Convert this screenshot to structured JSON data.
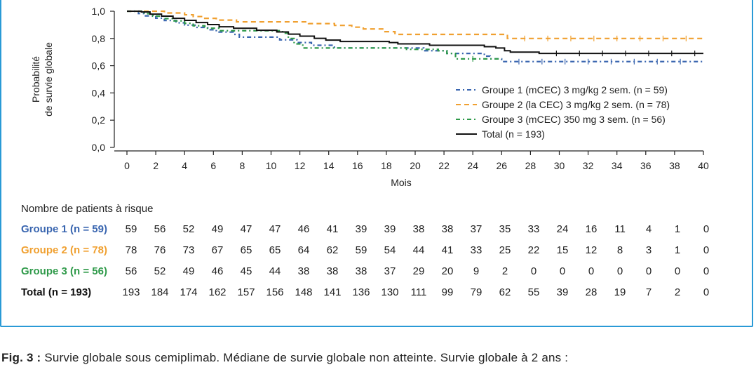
{
  "chart_data": {
    "type": "line",
    "subtype": "kaplan-meier",
    "ylabel_lines": [
      "Probabilité",
      "de survie globale"
    ],
    "xlabel": "Mois",
    "xlim": [
      0,
      40
    ],
    "ylim": [
      0,
      1
    ],
    "x_ticks": [
      "0",
      "2",
      "4",
      "6",
      "8",
      "10",
      "12",
      "14",
      "16",
      "18",
      "20",
      "22",
      "24",
      "26",
      "28",
      "30",
      "32",
      "34",
      "36",
      "38",
      "40"
    ],
    "y_ticks": [
      "0,0",
      "0,2",
      "0,4",
      "0,6",
      "0,8",
      "1,0"
    ],
    "legend_position": "lower-right",
    "series": [
      {
        "name": "Groupe 1 (mCEC) 3 mg/kg 2 sem. (n = 59)",
        "color": "#3a66b0",
        "dash": "dashdot",
        "points": [
          [
            0,
            1.0
          ],
          [
            0.8,
            0.983
          ],
          [
            1.2,
            0.966
          ],
          [
            2.0,
            0.949
          ],
          [
            2.6,
            0.932
          ],
          [
            3.4,
            0.915
          ],
          [
            4.0,
            0.898
          ],
          [
            4.8,
            0.881
          ],
          [
            5.6,
            0.864
          ],
          [
            6.2,
            0.847
          ],
          [
            7.0,
            0.847
          ],
          [
            7.4,
            0.83
          ],
          [
            7.8,
            0.81
          ],
          [
            9.2,
            0.81
          ],
          [
            9.8,
            0.81
          ],
          [
            10.6,
            0.79
          ],
          [
            11.2,
            0.79
          ],
          [
            11.8,
            0.77
          ],
          [
            12.8,
            0.75
          ],
          [
            13.6,
            0.75
          ],
          [
            14.4,
            0.73
          ],
          [
            19.6,
            0.73
          ],
          [
            20.6,
            0.71
          ],
          [
            22.2,
            0.69
          ],
          [
            24.8,
            0.67
          ],
          [
            25.2,
            0.65
          ],
          [
            26.0,
            0.63
          ],
          [
            40,
            0.63
          ]
        ]
      },
      {
        "name": "Groupe 2 (la CEC) 3 mg/kg 2 sem. (n = 78)",
        "color": "#f0a030",
        "dash": "dash",
        "points": [
          [
            0,
            1.0
          ],
          [
            2.6,
            0.987
          ],
          [
            4.0,
            0.974
          ],
          [
            4.6,
            0.961
          ],
          [
            5.4,
            0.948
          ],
          [
            6.2,
            0.935
          ],
          [
            7.6,
            0.922
          ],
          [
            11.8,
            0.922
          ],
          [
            12.6,
            0.909
          ],
          [
            14.4,
            0.896
          ],
          [
            15.6,
            0.883
          ],
          [
            16.4,
            0.87
          ],
          [
            17.8,
            0.85
          ],
          [
            18.6,
            0.83
          ],
          [
            26.0,
            0.83
          ],
          [
            26.4,
            0.8
          ],
          [
            40,
            0.8
          ]
        ]
      },
      {
        "name": "Groupe 3 (mCEC) 350 mg 3 sem. (n = 56)",
        "color": "#2f9a4a",
        "dash": "dashdot",
        "points": [
          [
            0,
            1.0
          ],
          [
            1.2,
            0.982
          ],
          [
            1.8,
            0.964
          ],
          [
            2.6,
            0.946
          ],
          [
            3.2,
            0.929
          ],
          [
            4.0,
            0.911
          ],
          [
            4.6,
            0.893
          ],
          [
            5.4,
            0.875
          ],
          [
            6.4,
            0.857
          ],
          [
            9.8,
            0.857
          ],
          [
            10.8,
            0.839
          ],
          [
            11.2,
            0.8
          ],
          [
            11.6,
            0.76
          ],
          [
            12.2,
            0.73
          ],
          [
            18.6,
            0.73
          ],
          [
            19.4,
            0.72
          ],
          [
            21.6,
            0.71
          ],
          [
            22.2,
            0.69
          ],
          [
            22.8,
            0.65
          ],
          [
            26.0,
            0.65
          ]
        ]
      },
      {
        "name": "Total (n = 193)",
        "color": "#111111",
        "dash": "solid",
        "points": [
          [
            0,
            1.0
          ],
          [
            1.0,
            0.995
          ],
          [
            1.6,
            0.979
          ],
          [
            2.4,
            0.964
          ],
          [
            3.2,
            0.948
          ],
          [
            4.0,
            0.933
          ],
          [
            4.8,
            0.917
          ],
          [
            5.6,
            0.902
          ],
          [
            6.4,
            0.886
          ],
          [
            7.4,
            0.875
          ],
          [
            9.0,
            0.86
          ],
          [
            10.4,
            0.848
          ],
          [
            11.2,
            0.832
          ],
          [
            12.0,
            0.817
          ],
          [
            13.0,
            0.801
          ],
          [
            13.8,
            0.788
          ],
          [
            14.8,
            0.778
          ],
          [
            17.6,
            0.778
          ],
          [
            18.2,
            0.77
          ],
          [
            18.8,
            0.76
          ],
          [
            20.6,
            0.76
          ],
          [
            21.0,
            0.75
          ],
          [
            24.8,
            0.74
          ],
          [
            25.6,
            0.73
          ],
          [
            26.2,
            0.71
          ],
          [
            26.6,
            0.7
          ],
          [
            28.4,
            0.7
          ],
          [
            28.6,
            0.69
          ],
          [
            40,
            0.69
          ]
        ]
      }
    ],
    "risk_table": {
      "title": "Nombre de patients à risque",
      "rows": [
        {
          "label": "Groupe 1 (n = 59)",
          "color": "#3a66b0",
          "values": [
            "59",
            "56",
            "52",
            "49",
            "47",
            "47",
            "46",
            "41",
            "39",
            "39",
            "38",
            "38",
            "37",
            "35",
            "33",
            "24",
            "16",
            "11",
            "4",
            "1",
            "0"
          ]
        },
        {
          "label": "Groupe 2 (n = 78)",
          "color": "#f0a030",
          "values": [
            "78",
            "76",
            "73",
            "67",
            "65",
            "65",
            "64",
            "62",
            "59",
            "54",
            "44",
            "41",
            "33",
            "25",
            "22",
            "15",
            "12",
            "8",
            "3",
            "1",
            "0"
          ]
        },
        {
          "label": "Groupe 3 (n = 56)",
          "color": "#2f9a4a",
          "values": [
            "56",
            "52",
            "49",
            "46",
            "45",
            "44",
            "38",
            "38",
            "38",
            "37",
            "29",
            "20",
            "9",
            "2",
            "0",
            "0",
            "0",
            "0",
            "0",
            "0",
            "0"
          ]
        },
        {
          "label": "Total (n = 193)",
          "color": "#111111",
          "values": [
            "193",
            "184",
            "174",
            "162",
            "157",
            "156",
            "148",
            "141",
            "136",
            "130",
            "111",
            "99",
            "79",
            "62",
            "55",
            "39",
            "28",
            "19",
            "7",
            "2",
            "0"
          ]
        }
      ]
    }
  },
  "caption": {
    "lead": "Fig. 3 :",
    "text": " Survie globale sous cemiplimab. Médiane de survie globale non atteinte. Survie globale à 2 ans :"
  }
}
